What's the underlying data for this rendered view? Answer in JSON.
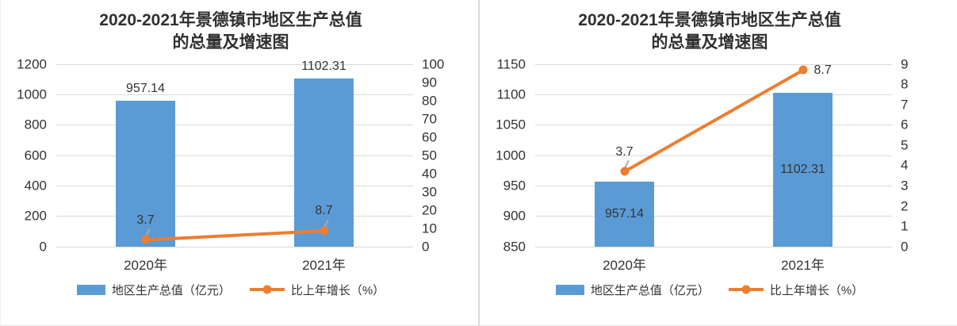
{
  "colors": {
    "bar_fill": "#5B9BD5",
    "line_stroke": "#ED7D31",
    "gridline": "#D9D9D9",
    "title_text": "#303030",
    "tick_text": "#333333",
    "panel_divider": "#D9D9D9"
  },
  "chart_data": [
    {
      "type": "bar",
      "combo": "bar+line",
      "title_line1": "2020-2021年景德镇市地区生产总值",
      "title_line2": "的总量及增速图",
      "categories": [
        "2020年",
        "2021年"
      ],
      "series": [
        {
          "name": "地区生产总值（亿元）",
          "type": "bar",
          "axis": "primary",
          "values": [
            957.14,
            1102.31
          ],
          "data_labels": [
            "957.14",
            "1102.31"
          ],
          "label_positions": [
            "above",
            "above"
          ]
        },
        {
          "name": "比上年增长（%）",
          "type": "line",
          "axis": "secondary",
          "values": [
            3.7,
            8.7
          ],
          "data_labels": [
            "3.7",
            "8.7"
          ],
          "label_positions": [
            "above",
            "above"
          ]
        }
      ],
      "primary_axis": {
        "min": 0,
        "max": 1200,
        "ticks": [
          "1200",
          "1000",
          "800",
          "600",
          "400",
          "200",
          "0"
        ]
      },
      "secondary_axis": {
        "min": 0,
        "max": 100,
        "ticks": [
          "100",
          "90",
          "80",
          "70",
          "60",
          "50",
          "40",
          "30",
          "20",
          "10",
          "0"
        ]
      },
      "grid": true,
      "legend_position": "bottom"
    },
    {
      "type": "bar",
      "combo": "bar+line",
      "title_line1": "2020-2021年景德镇市地区生产总值",
      "title_line2": "的总量及增速图",
      "categories": [
        "2020年",
        "2021年"
      ],
      "series": [
        {
          "name": "地区生产总值（亿元）",
          "type": "bar",
          "axis": "primary",
          "values": [
            957.14,
            1102.31
          ],
          "data_labels": [
            "957.14",
            "1102.31"
          ],
          "label_positions": [
            "inside",
            "inside"
          ]
        },
        {
          "name": "比上年增长（%）",
          "type": "line",
          "axis": "secondary",
          "values": [
            3.7,
            8.7
          ],
          "data_labels": [
            "3.7",
            "8.7"
          ],
          "label_positions": [
            "above",
            "right"
          ]
        }
      ],
      "primary_axis": {
        "min": 850,
        "max": 1150,
        "ticks": [
          "1150",
          "1100",
          "1050",
          "1000",
          "950",
          "900",
          "850"
        ]
      },
      "secondary_axis": {
        "min": 0,
        "max": 9,
        "ticks": [
          "9",
          "8",
          "7",
          "6",
          "5",
          "4",
          "3",
          "2",
          "1",
          "0"
        ]
      },
      "grid": true,
      "legend_position": "bottom"
    }
  ]
}
